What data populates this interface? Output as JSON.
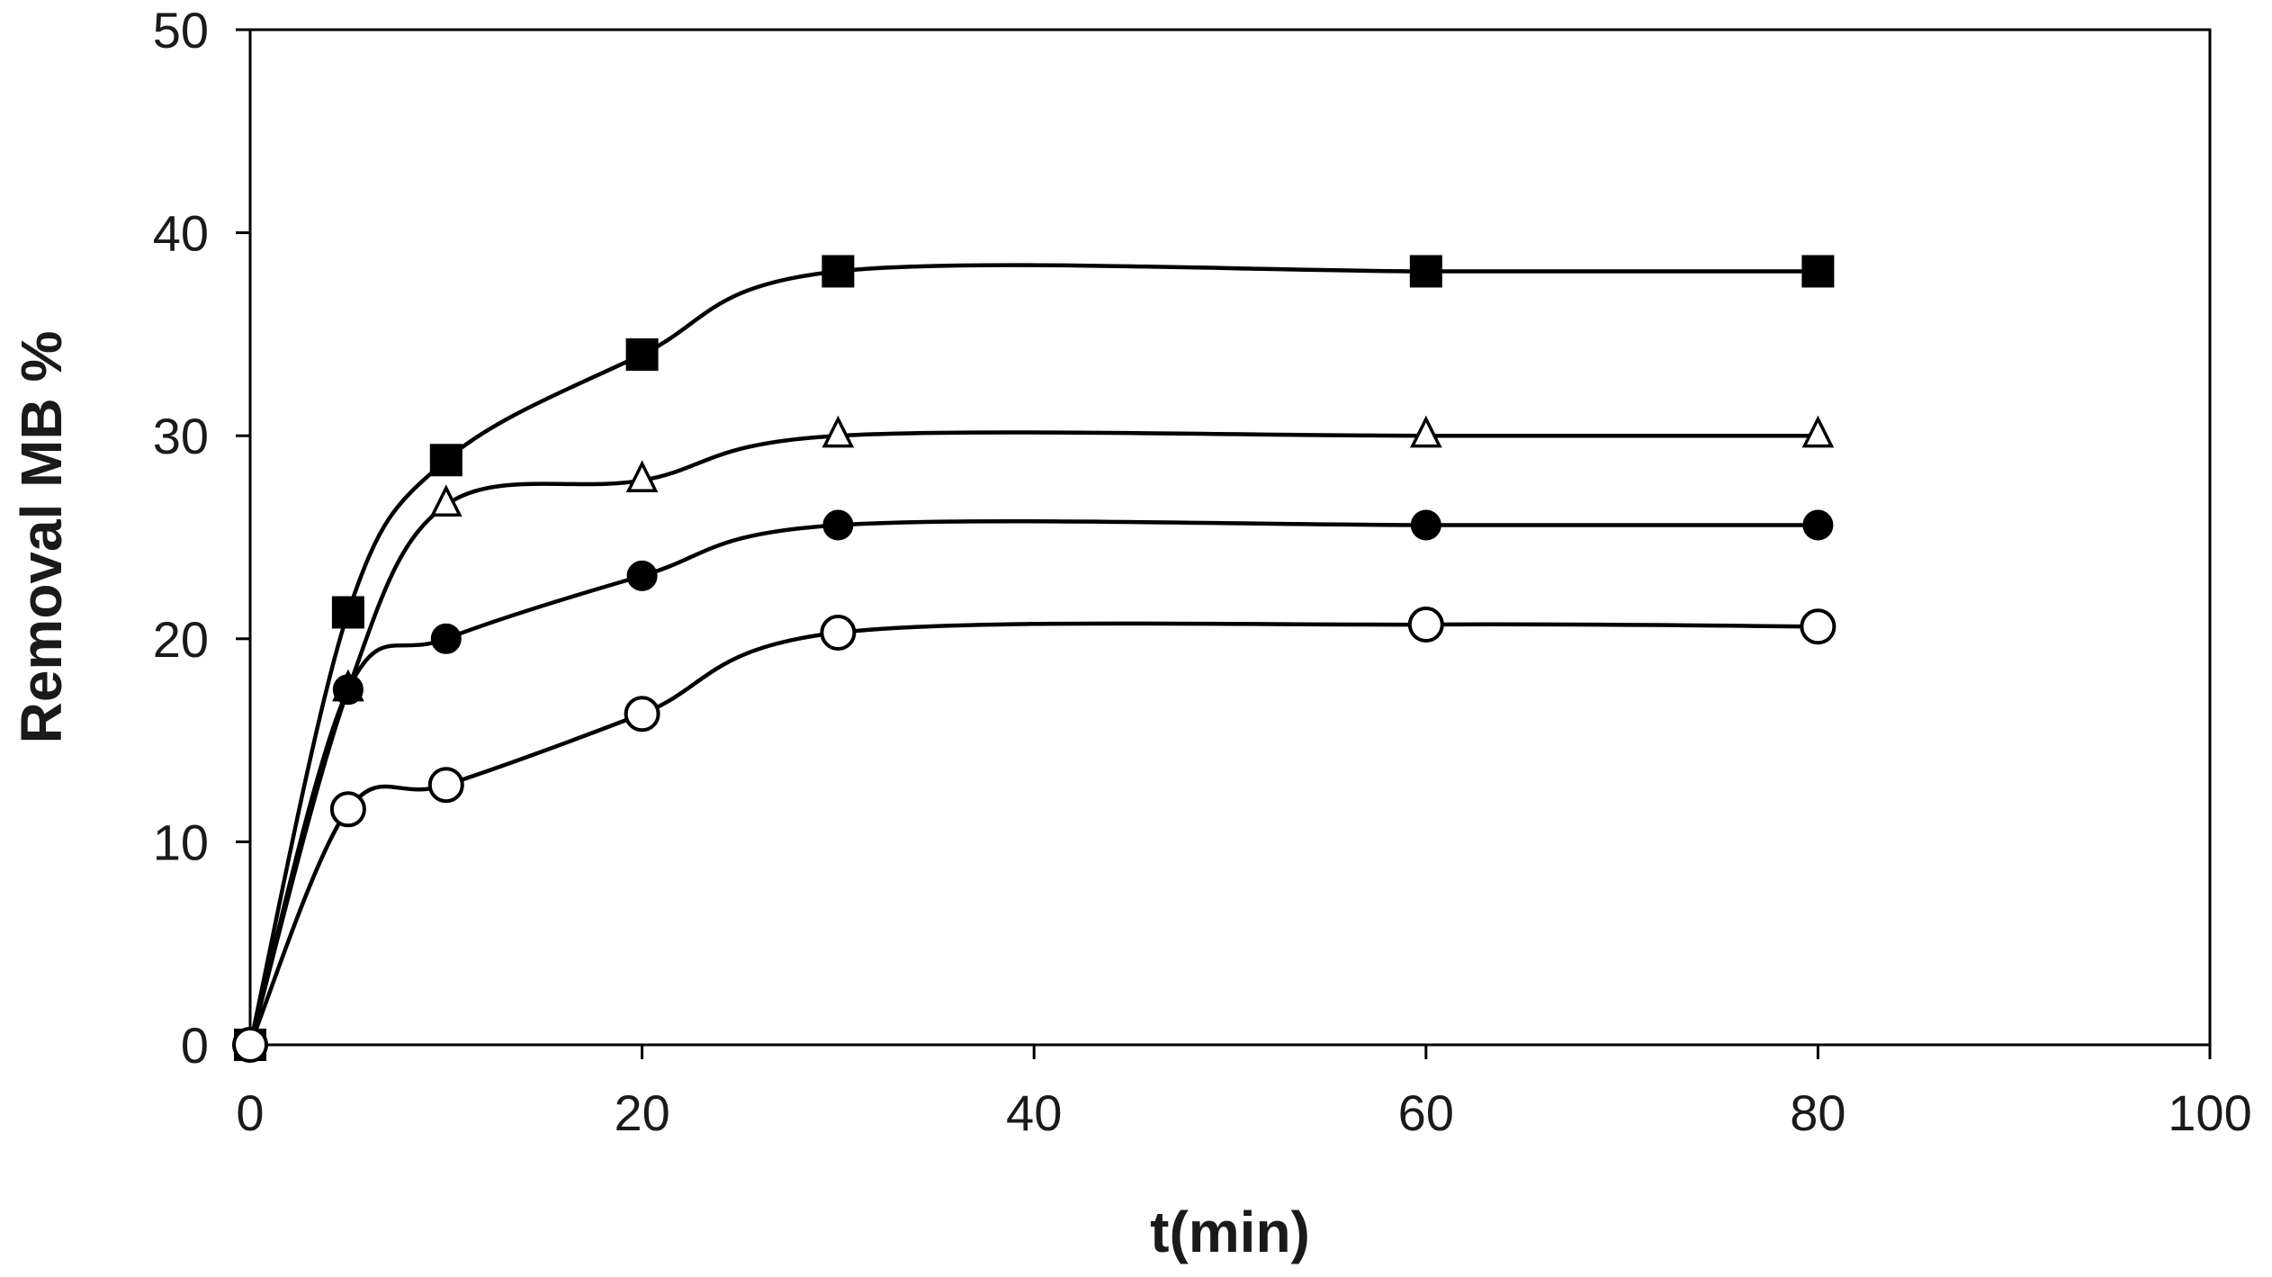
{
  "chart_data": {
    "type": "line",
    "title": "",
    "xlabel": "t(min)",
    "ylabel": "Removal MB %",
    "xlim": [
      0,
      100
    ],
    "ylim": [
      0,
      50
    ],
    "xticks": [
      0,
      20,
      40,
      60,
      80,
      100
    ],
    "yticks": [
      0,
      10,
      20,
      30,
      40,
      50
    ],
    "grid": false,
    "legend": "none",
    "series": [
      {
        "name": "filled-square",
        "marker": "square-filled",
        "x": [
          0,
          5,
          10,
          20,
          30,
          60,
          80
        ],
        "y": [
          0,
          21.3,
          28.8,
          34.0,
          38.1,
          38.1,
          38.1
        ]
      },
      {
        "name": "open-triangle",
        "marker": "triangle-open",
        "x": [
          0,
          5,
          10,
          20,
          30,
          60,
          80
        ],
        "y": [
          0,
          17.5,
          26.6,
          27.8,
          30.0,
          30.0,
          30.0
        ]
      },
      {
        "name": "filled-circle",
        "marker": "circle-filled",
        "x": [
          0,
          5,
          10,
          20,
          30,
          60,
          80
        ],
        "y": [
          0,
          17.5,
          20.0,
          23.1,
          25.6,
          25.6,
          25.6
        ]
      },
      {
        "name": "open-circle",
        "marker": "circle-open",
        "x": [
          0,
          5,
          10,
          20,
          30,
          60,
          80
        ],
        "y": [
          0,
          11.6,
          12.8,
          16.3,
          20.3,
          20.7,
          20.6
        ]
      }
    ]
  }
}
